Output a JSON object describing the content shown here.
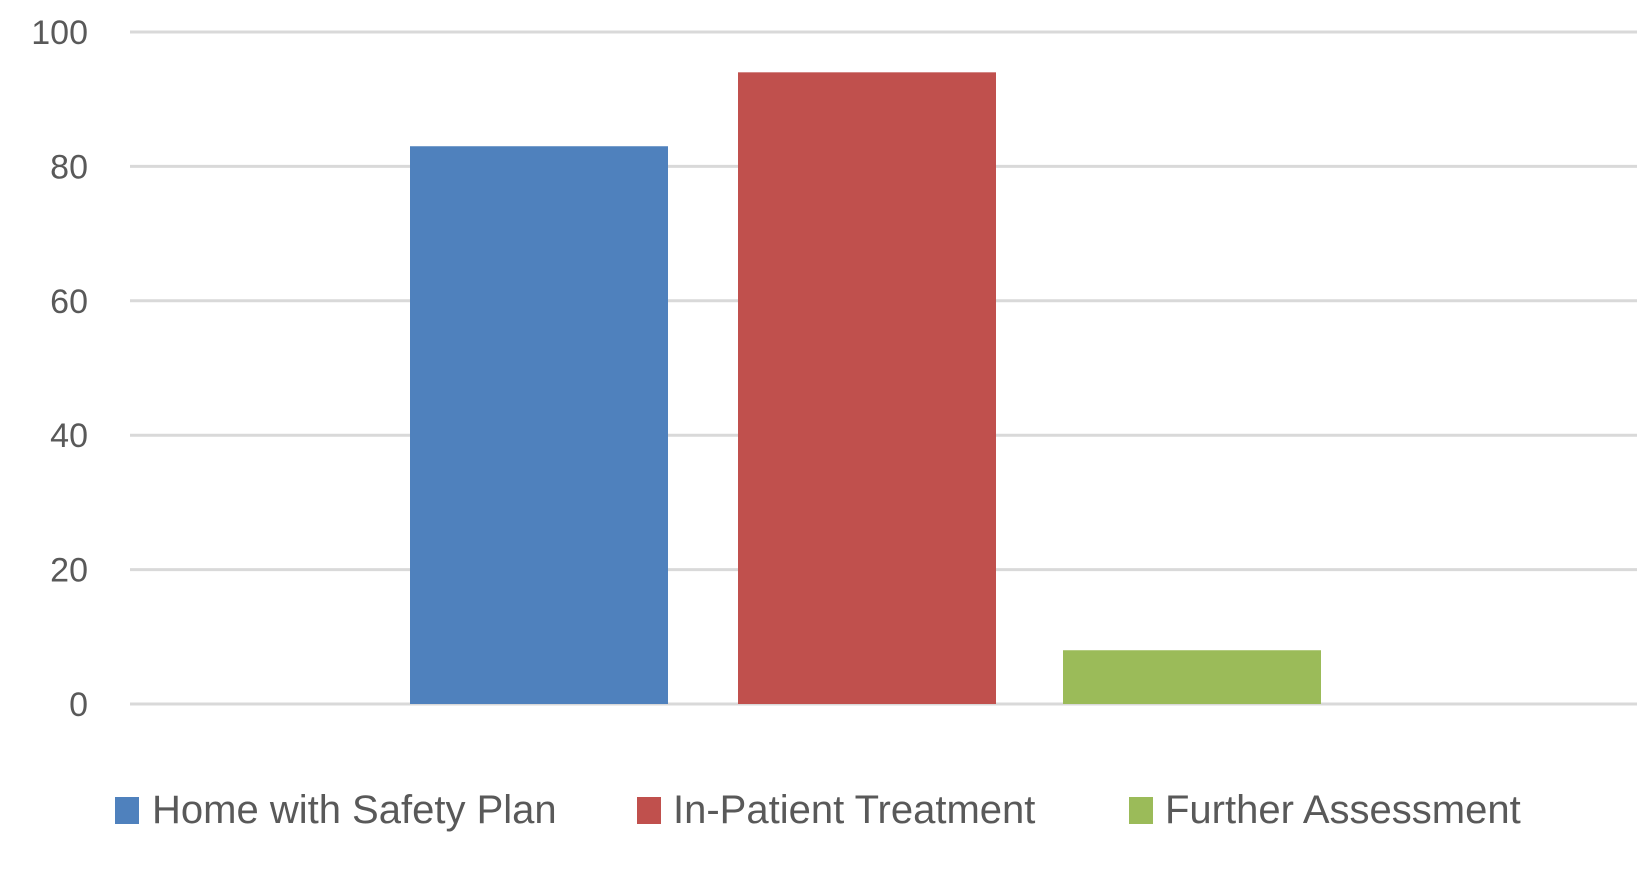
{
  "chart_data": {
    "type": "bar",
    "categories": [
      "Home with Safety Plan",
      "In-Patient Treatment",
      "Further Assessment"
    ],
    "values": [
      83,
      94,
      8
    ],
    "colors": [
      "#4f81bd",
      "#c0504d",
      "#9bbb59"
    ],
    "yticks": [
      "0",
      "20",
      "40",
      "60",
      "80",
      "100"
    ],
    "ylim": [
      0,
      100
    ],
    "grid": true,
    "legend_position": "bottom",
    "gridline_color": "#d9d9d9",
    "tick_label_color": "#595959"
  }
}
